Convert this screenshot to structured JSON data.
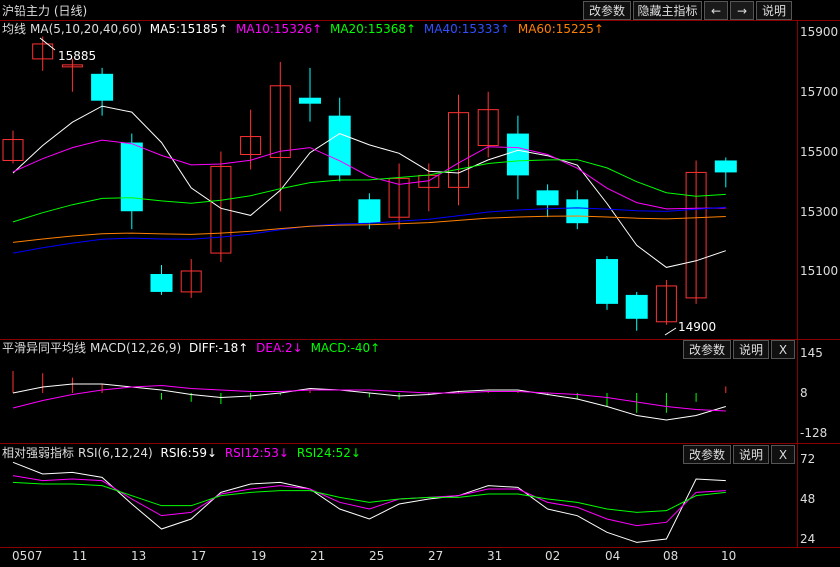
{
  "title": "沪铅主力 (日线)",
  "toolbar": {
    "change_params": "改参数",
    "hide_main": "隐藏主指标",
    "left_arrow": "←",
    "right_arrow": "→",
    "help": "说明"
  },
  "main_panel": {
    "legend": {
      "name": "均线",
      "params": "MA(5,10,20,40,60)",
      "ma5": "MA5:15185↑",
      "ma10": "MA10:15326↑",
      "ma20": "MA20:15368↑",
      "ma40": "MA40:15333↑",
      "ma60": "MA60:15225↑"
    },
    "high_label": "15885",
    "low_label": "14900",
    "y_ticks": [
      "15900",
      "15700",
      "15500",
      "15300",
      "15100"
    ]
  },
  "macd_panel": {
    "legend": {
      "name": "平滑异同平均线",
      "params": "MACD(12,26,9)",
      "diff": "DIFF:-18↑",
      "dea": "DEA:2↓",
      "macd": "MACD:-40↑"
    },
    "buttons": {
      "change_params": "改参数",
      "help": "说明",
      "close": "X"
    },
    "y_ticks": [
      "145",
      "8",
      "-128"
    ]
  },
  "rsi_panel": {
    "legend": {
      "name": "相对强弱指标",
      "params": "RSI(6,12,24)",
      "rsi6": "RSI6:59↓",
      "rsi12": "RSI12:53↓",
      "rsi24": "RSI24:52↓"
    },
    "buttons": {
      "change_params": "改参数",
      "help": "说明",
      "close": "X"
    },
    "y_ticks": [
      "72",
      "48",
      "24"
    ]
  },
  "x_axis": [
    "0507",
    "11",
    "13",
    "17",
    "19",
    "21",
    "25",
    "27",
    "31",
    "02",
    "04",
    "08",
    "10"
  ],
  "colors": {
    "up": "#ff3232",
    "down": "#00ffff",
    "ma5": "#ffffff",
    "ma10": "#ff00ff",
    "ma20": "#00ff00",
    "ma40": "#0000ff",
    "ma60": "#ff8000",
    "grid": "#8a0000",
    "dea": "#ff00ff",
    "rsi12": "#ff00ff",
    "rsi24": "#00ff00"
  },
  "chart_data": {
    "type": "candlestick",
    "candles": [
      {
        "o": 15470,
        "c": 15540,
        "h": 15570,
        "l": 15460
      },
      {
        "o": 15810,
        "c": 15860,
        "h": 15885,
        "l": 15770
      },
      {
        "o": 15790,
        "c": 15790,
        "h": 15810,
        "l": 15700
      },
      {
        "o": 15760,
        "c": 15670,
        "h": 15780,
        "l": 15620
      },
      {
        "o": 15530,
        "c": 15300,
        "h": 15560,
        "l": 15240
      },
      {
        "o": 15090,
        "c": 15030,
        "h": 15120,
        "l": 15020
      },
      {
        "o": 15030,
        "c": 15100,
        "h": 15140,
        "l": 15010
      },
      {
        "o": 15160,
        "c": 15450,
        "h": 15500,
        "l": 15130
      },
      {
        "o": 15490,
        "c": 15550,
        "h": 15640,
        "l": 15440
      },
      {
        "o": 15480,
        "c": 15720,
        "h": 15800,
        "l": 15300
      },
      {
        "o": 15680,
        "c": 15660,
        "h": 15780,
        "l": 15600
      },
      {
        "o": 15620,
        "c": 15420,
        "h": 15680,
        "l": 15400
      },
      {
        "o": 15340,
        "c": 15260,
        "h": 15360,
        "l": 15240
      },
      {
        "o": 15280,
        "c": 15410,
        "h": 15460,
        "l": 15240
      },
      {
        "o": 15380,
        "c": 15420,
        "h": 15460,
        "l": 15300
      },
      {
        "o": 15380,
        "c": 15630,
        "h": 15690,
        "l": 15320
      },
      {
        "o": 15520,
        "c": 15640,
        "h": 15700,
        "l": 15480
      },
      {
        "o": 15560,
        "c": 15420,
        "h": 15620,
        "l": 15340
      },
      {
        "o": 15370,
        "c": 15320,
        "h": 15390,
        "l": 15280
      },
      {
        "o": 15340,
        "c": 15260,
        "h": 15370,
        "l": 15240
      },
      {
        "o": 15140,
        "c": 14990,
        "h": 15150,
        "l": 14970
      },
      {
        "o": 15020,
        "c": 14940,
        "h": 15030,
        "l": 14900
      },
      {
        "o": 14930,
        "c": 15050,
        "h": 15070,
        "l": 14920
      },
      {
        "o": 15010,
        "c": 15430,
        "h": 15470,
        "l": 14990
      },
      {
        "o": 15470,
        "c": 15430,
        "h": 15480,
        "l": 15380
      }
    ]
  }
}
